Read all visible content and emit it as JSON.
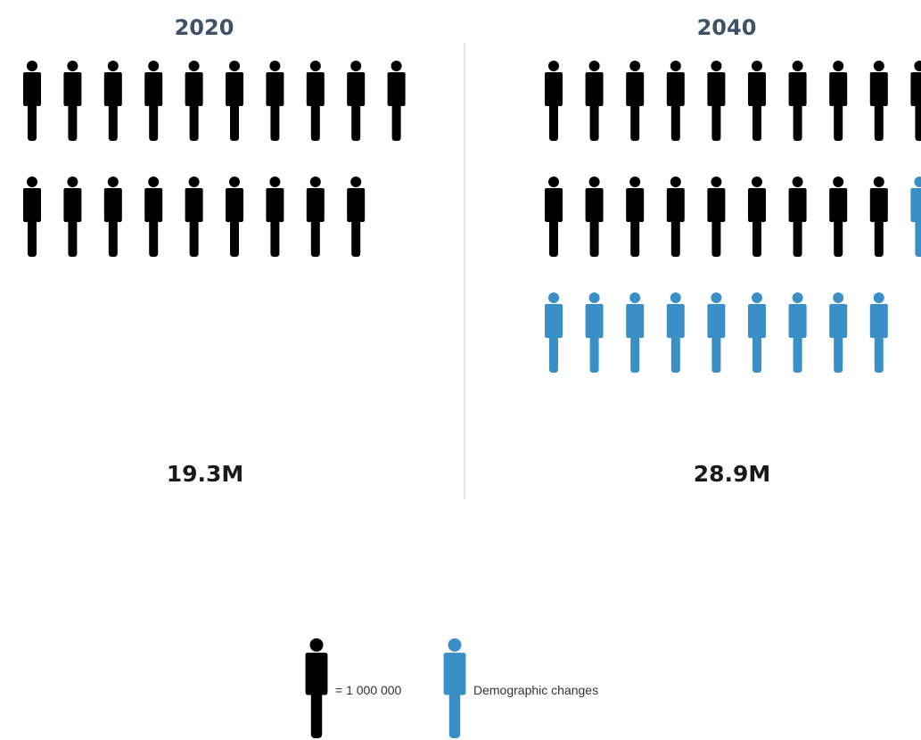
{
  "chart_data": {
    "type": "pictogram",
    "unit_value": 1000000,
    "panels": [
      {
        "year": "2020",
        "total_label": "19.3M",
        "base_icons": 19,
        "change_icons": 0
      },
      {
        "year": "2040",
        "total_label": "28.9M",
        "base_icons": 19,
        "change_icons": 10
      }
    ],
    "icons_per_row": 10,
    "legend": {
      "unit_label": "= 1 000 000",
      "change_label": "Demographic changes"
    },
    "colors": {
      "base": "#000000",
      "change": "#3a8fc6",
      "year_text": "#3d5266",
      "divider": "#e6e6e6"
    }
  }
}
